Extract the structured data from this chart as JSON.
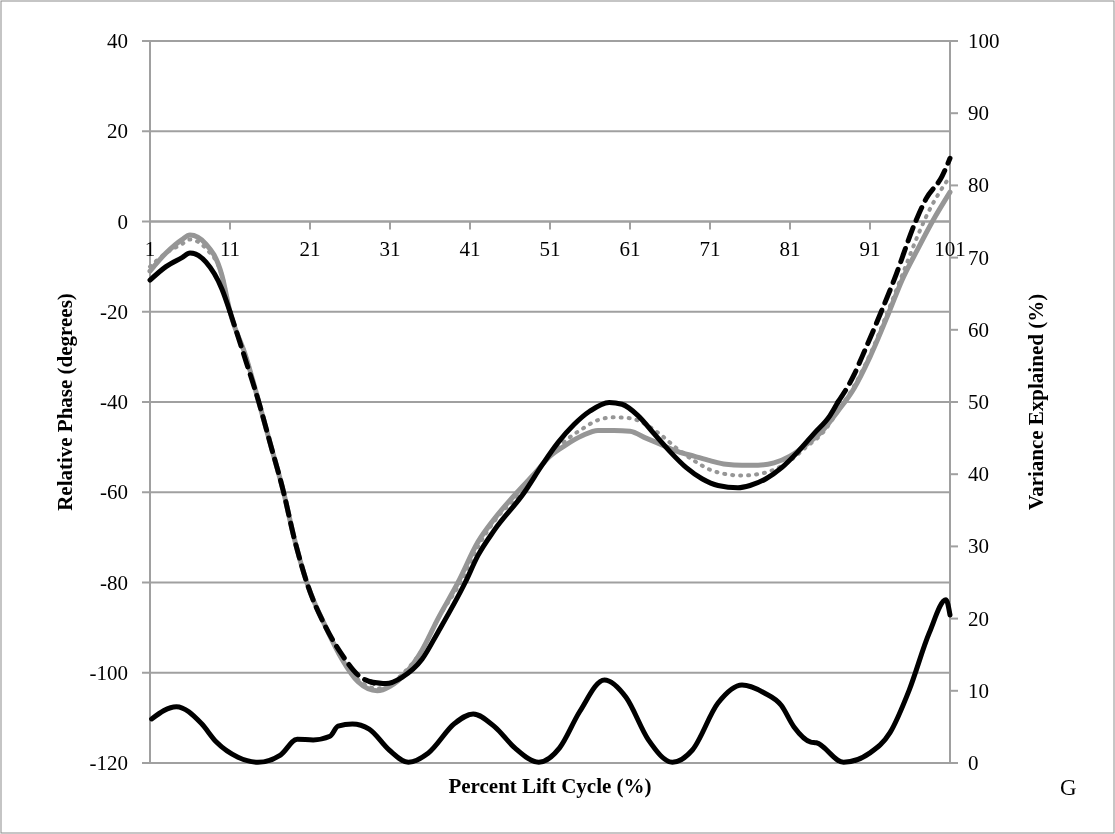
{
  "chart_data": {
    "type": "line",
    "xlabel": "Percent Lift Cycle (%)",
    "ylabel": "Relative Phase (degrees)",
    "y2label": "Variance Explained (%)",
    "annotations": [
      "G"
    ],
    "xlim": [
      1,
      101
    ],
    "xticks": [
      1,
      11,
      21,
      31,
      41,
      51,
      61,
      71,
      81,
      91,
      101
    ],
    "ylim": [
      -120,
      40
    ],
    "yticks": [
      -120,
      -100,
      -80,
      -60,
      -40,
      -20,
      0,
      20,
      40
    ],
    "y2lim": [
      0,
      100
    ],
    "y2ticks": [
      0,
      10,
      20,
      30,
      40,
      50,
      60,
      70,
      80,
      90,
      100
    ],
    "grid": "y",
    "series": [
      {
        "color": "#969696",
        "line_style": "solid",
        "x": [
          1,
          3,
          5,
          6,
          8,
          10,
          11,
          13,
          14.6,
          16,
          17.7,
          19,
          20.6,
          23,
          25,
          27,
          29.4,
          31,
          33,
          35,
          37,
          39.5,
          42,
          44,
          46.9,
          49,
          51,
          53,
          55,
          57,
          59,
          61,
          63,
          65,
          67,
          69,
          71,
          73,
          75,
          77,
          79,
          81,
          83,
          85,
          87,
          89,
          91,
          93.4,
          95,
          97,
          98.8,
          101
        ],
        "values": [
          -11,
          -7,
          -4,
          -3,
          -5,
          -12,
          -20,
          -30,
          -40,
          -49,
          -60,
          -70,
          -80,
          -90,
          -97,
          -102,
          -104,
          -103,
          -100,
          -95,
          -88,
          -80,
          -71,
          -66,
          -60,
          -56,
          -52,
          -49.5,
          -47.5,
          -46.3,
          -46.3,
          -46.5,
          -48,
          -49.5,
          -51,
          -52,
          -53,
          -53.8,
          -54,
          -54,
          -53.5,
          -52,
          -49.5,
          -46.5,
          -42,
          -37,
          -30,
          -20,
          -13,
          -6,
          0,
          6.5
        ]
      },
      {
        "color": "#969696",
        "line_style": "dotted",
        "x": [
          1,
          3,
          5,
          6,
          8,
          10,
          11,
          13,
          14.6,
          16,
          17.7,
          19,
          20.6,
          23,
          25,
          27,
          29.4,
          31,
          33,
          35,
          37,
          39.8,
          42,
          44,
          47.3,
          49,
          51,
          53,
          55,
          57,
          59,
          61,
          63,
          65,
          67,
          69,
          71,
          73,
          75,
          77,
          79,
          81,
          83,
          85,
          87,
          89,
          91,
          93,
          95,
          97,
          98,
          101
        ],
        "values": [
          -10,
          -7,
          -5,
          -4,
          -6,
          -12,
          -20,
          -30,
          -40,
          -49,
          -60,
          -70,
          -80,
          -90,
          -97,
          -101.5,
          -103.5,
          -102.5,
          -99.5,
          -95,
          -88,
          -80,
          -72,
          -66.5,
          -60,
          -56,
          -52,
          -48.5,
          -46,
          -44,
          -43.4,
          -43.6,
          -45,
          -47.5,
          -50.5,
          -53,
          -55,
          -56,
          -56.3,
          -56,
          -55,
          -53,
          -50,
          -47,
          -42,
          -36.5,
          -29.5,
          -21,
          -12,
          -3,
          1,
          10
        ]
      },
      {
        "color": "#000000",
        "line_style": "solid",
        "x": [
          1,
          3,
          5,
          6,
          8,
          10,
          11
        ],
        "values": [
          -13,
          -10,
          -8,
          -7,
          -9,
          -15,
          -20
        ]
      },
      {
        "color": "#000000",
        "line_style": "solid",
        "x": [
          28.5,
          30.5,
          32.5,
          35,
          37,
          40.4,
          42,
          44,
          47.8,
          50,
          52,
          54,
          56,
          58.4,
          60,
          62,
          64,
          66,
          68,
          70,
          72,
          74.5,
          76,
          78,
          80,
          82,
          84,
          86,
          87
        ],
        "values": [
          -102,
          -102.4,
          -101,
          -97,
          -91,
          -80,
          -74,
          -68.5,
          -60,
          -54,
          -49,
          -45,
          -42,
          -40.1,
          -40.5,
          -43,
          -47,
          -51,
          -54.5,
          -57,
          -58.5,
          -59,
          -58.5,
          -57,
          -54.5,
          -51,
          -47,
          -43,
          -40
        ]
      },
      {
        "color": "#000000",
        "line_style": "dashed",
        "x": [
          11,
          13,
          14.6,
          16,
          17.7,
          19,
          20.6,
          23,
          25,
          27,
          29
        ],
        "values": [
          -20,
          -31,
          -40,
          -49,
          -60,
          -70,
          -80,
          -90,
          -96,
          -100.5,
          -102.3
        ]
      },
      {
        "color": "#000000",
        "line_style": "dashed",
        "x": [
          87,
          89,
          90,
          92.4,
          94,
          96.7,
          98,
          100,
          101
        ],
        "values": [
          -40,
          -34,
          -30,
          -20,
          -13,
          0,
          5,
          10,
          14
        ]
      },
      {
        "color": "#000000",
        "line_style": "solid",
        "axis": "y2",
        "x": [
          1.2,
          4.3,
          7.4,
          9.3,
          12,
          14.5,
          17.3,
          19.4,
          21.4,
          23.5,
          24.5,
          26.3,
          28.4,
          30.9,
          33.3,
          35.8,
          39.1,
          41.4,
          44.1,
          46.6,
          49.6,
          52.2,
          54.7,
          57.8,
          60.5,
          63.3,
          66.3,
          68.8,
          72,
          75,
          77.8,
          79.9,
          81.5,
          83.6,
          84.3,
          87.7,
          91,
          93.5,
          95.9,
          98.4,
          100.5,
          101
        ],
        "values": [
          6.1,
          7.8,
          5.5,
          2.9,
          0.8,
          0.1,
          1.1,
          3.3,
          3.2,
          3.7,
          5.1,
          5.4,
          4.7,
          1.8,
          0.1,
          1.4,
          5.5,
          6.8,
          5,
          2.1,
          0.1,
          2.1,
          7.1,
          11.5,
          9.1,
          3.2,
          0.1,
          1.8,
          8.3,
          10.8,
          9.7,
          8,
          5,
          2.9,
          2.8,
          0.1,
          1.4,
          4.2,
          10.1,
          18,
          22.6,
          20.5
        ]
      }
    ]
  }
}
